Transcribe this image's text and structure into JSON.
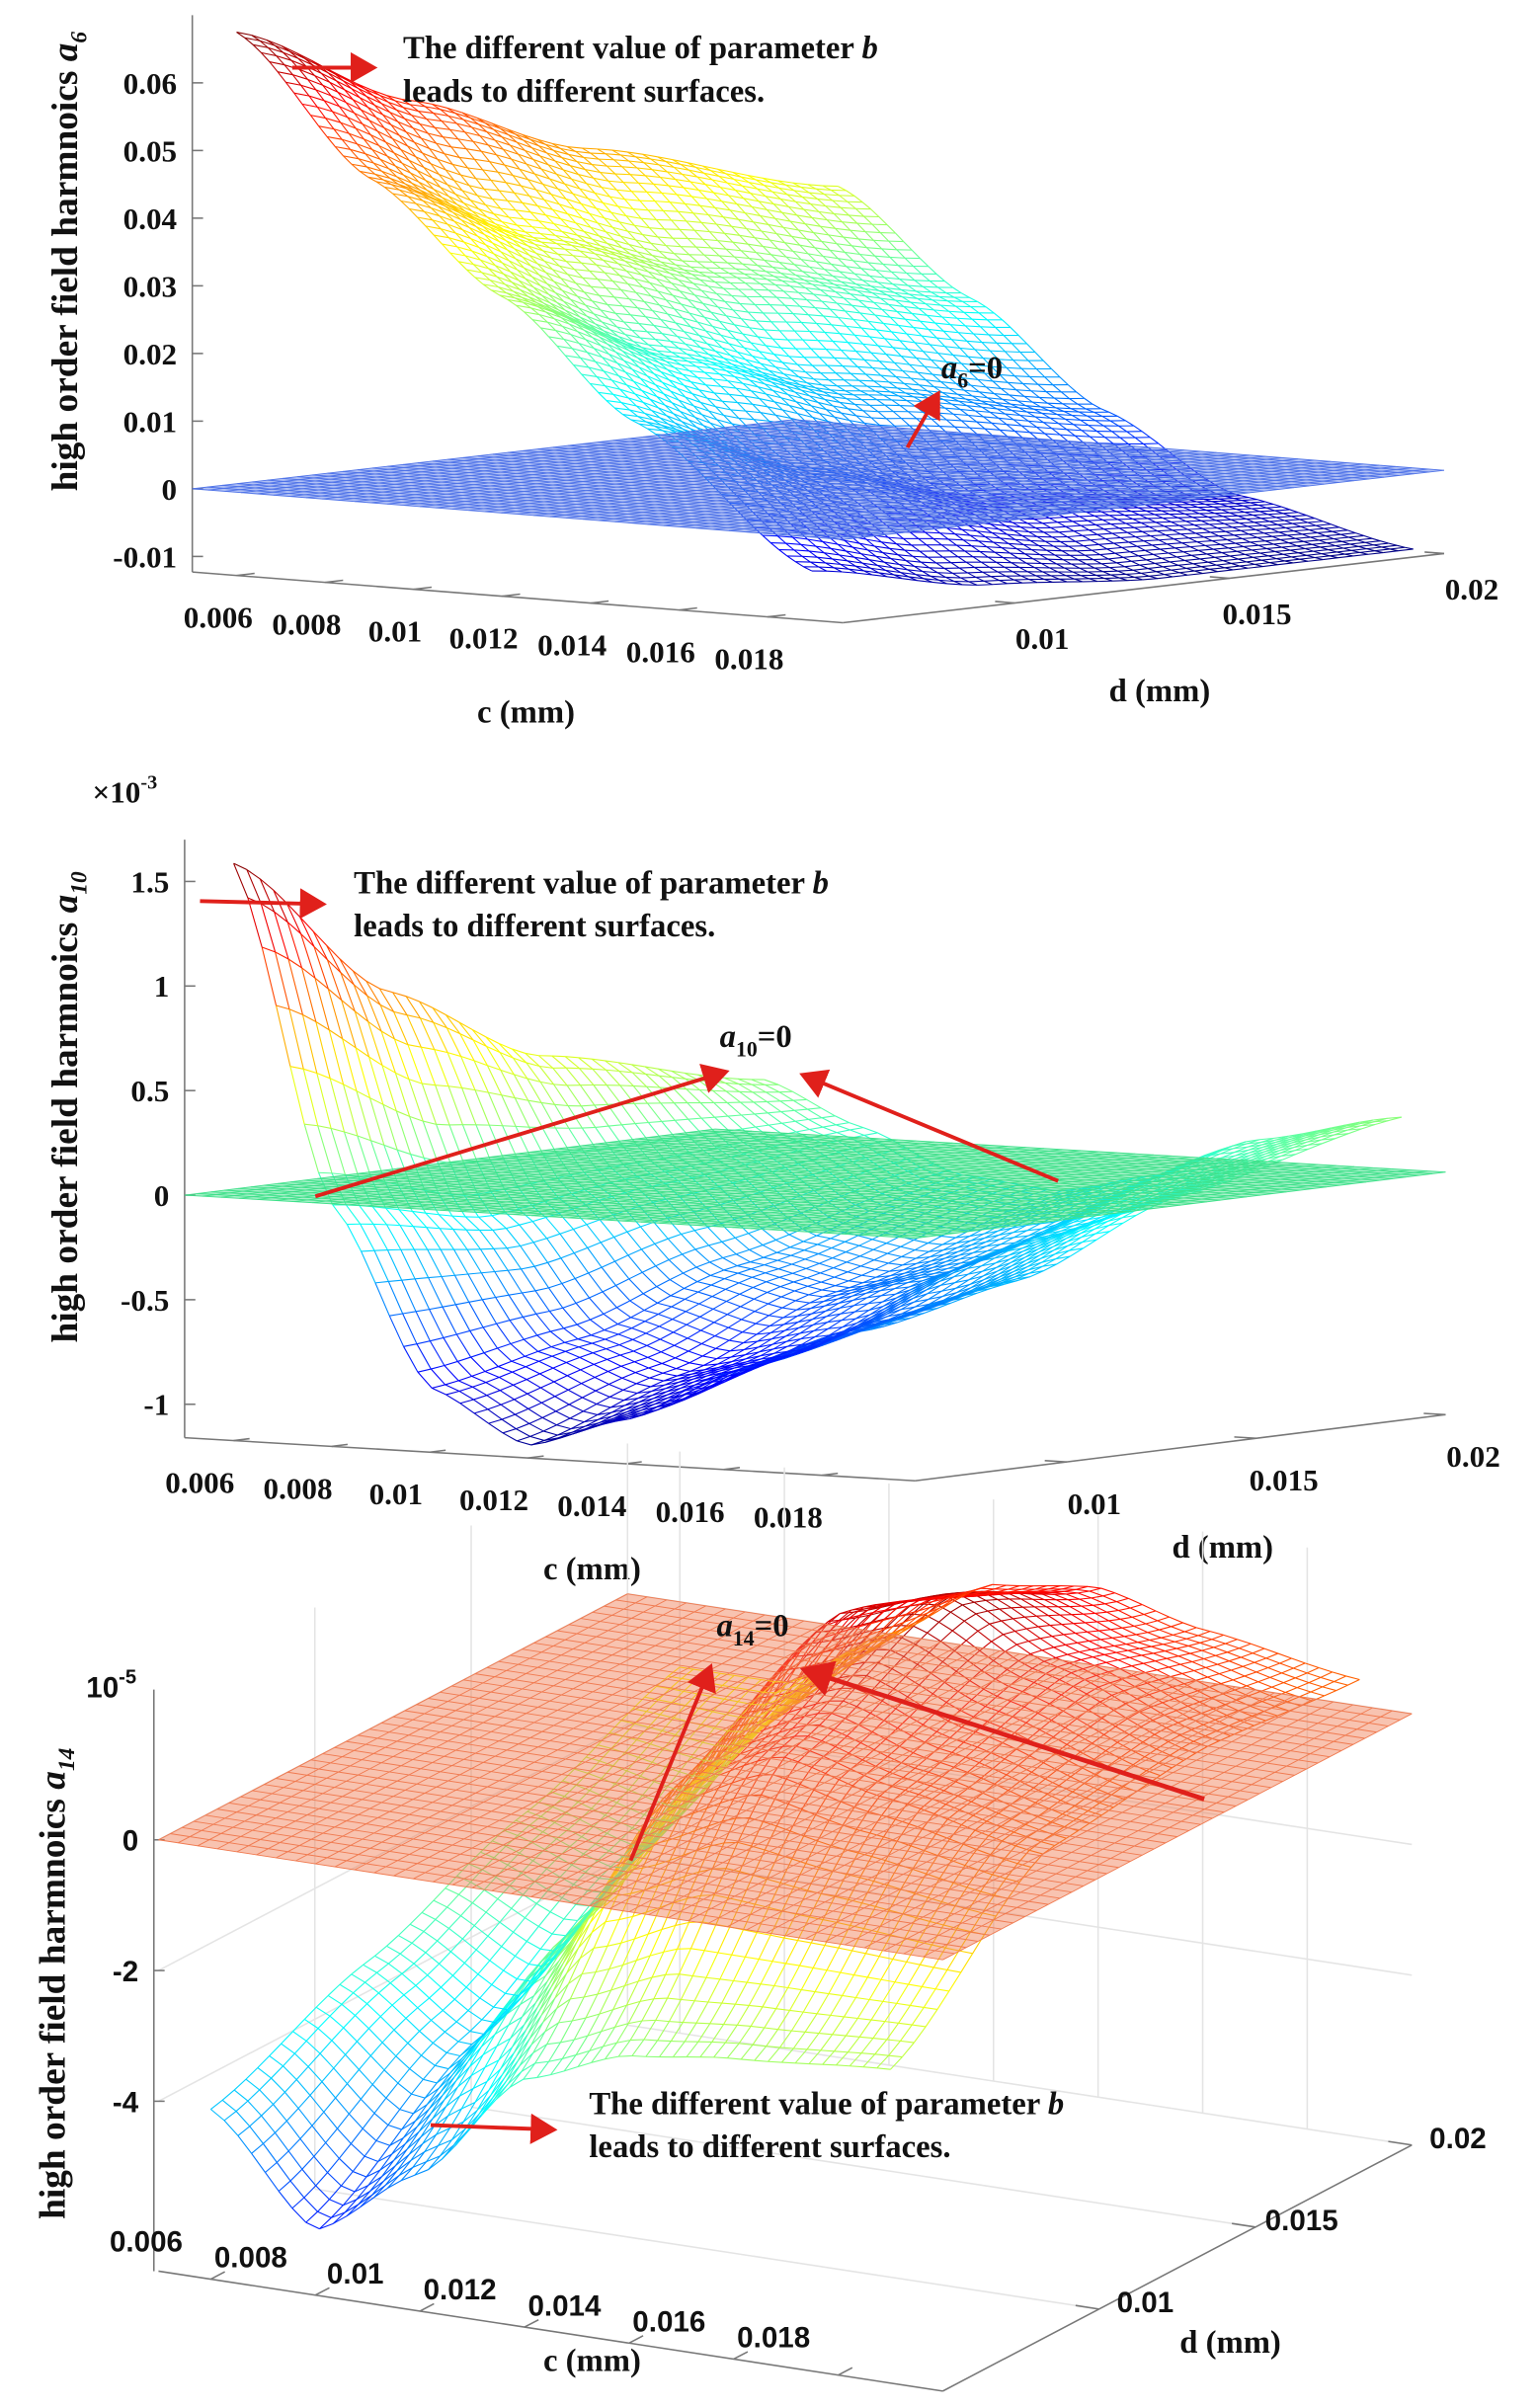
{
  "colors": {
    "arrow": "#e0201b",
    "axis": "#777777",
    "grid": "#e4e4e4"
  },
  "chart_data": [
    {
      "type": "surface",
      "zlabel": {
        "text": "high order field harmnoics ",
        "var": "a",
        "sub": "6"
      },
      "xlabel": "c (mm)",
      "ylabel": "d (mm)",
      "z_exponent": "",
      "c_range": [
        0.005,
        0.0197
      ],
      "d_range": [
        0.006,
        0.02
      ],
      "z_range": [
        -0.0123,
        0.07
      ],
      "c_ticks": [
        "0.006",
        "0.008",
        "0.01",
        "0.012",
        "0.014",
        "0.016",
        "0.018"
      ],
      "d_ticks": [
        "0.01",
        "0.015",
        "0.02"
      ],
      "z_ticks": [
        "-0.01",
        "0",
        "0.01",
        "0.02",
        "0.03",
        "0.04",
        "0.05",
        "0.06"
      ],
      "grid": false,
      "colormap": "jet",
      "color_range": [
        -0.0123,
        0.068
      ],
      "plane_color": "#4f73e8",
      "surface": {
        "c": [
          0.006,
          0.009,
          0.012,
          0.015,
          0.019
        ],
        "d": [
          0.006,
          0.01,
          0.014,
          0.02
        ],
        "z": [
          [
            0.068,
            0.048,
            0.032,
            0.015,
            -0.005
          ],
          [
            0.055,
            0.036,
            0.02,
            0.005,
            -0.01
          ],
          [
            0.045,
            0.028,
            0.012,
            -0.002,
            -0.012
          ],
          [
            0.035,
            0.02,
            0.005,
            -0.006,
            -0.012
          ]
        ]
      },
      "annotations": {
        "surfaces_line1": "The different value of parameter ",
        "surfaces_b": "b",
        "surfaces_line2": "leads to different surfaces.",
        "zero_var": "a",
        "zero_sub": "6",
        "zero_eq": "=0"
      }
    },
    {
      "type": "surface",
      "zlabel": {
        "text": "high order field harmnoics ",
        "var": "a",
        "sub": "10"
      },
      "xlabel": "c (mm)",
      "ylabel": "d (mm)",
      "z_exponent": {
        "base": "×10",
        "exp": "-3"
      },
      "c_range": [
        0.005,
        0.0199
      ],
      "d_range": [
        0.006,
        0.02
      ],
      "z_range": [
        -1.16,
        1.7
      ],
      "c_ticks": [
        "0.006",
        "0.008",
        "0.01",
        "0.012",
        "0.014",
        "0.016",
        "0.018"
      ],
      "d_ticks": [
        "0.01",
        "0.015",
        "0.02"
      ],
      "z_ticks": [
        "-1",
        "-0.5",
        "0",
        "0.5",
        "1",
        "1.5"
      ],
      "grid": false,
      "colormap": "jet",
      "color_range": [
        -1.15,
        1.6
      ],
      "plane_color": "#3fe08a",
      "surface": {
        "c": [
          0.006,
          0.008,
          0.01,
          0.012,
          0.014,
          0.016,
          0.019
        ],
        "d": [
          0.006,
          0.01,
          0.014,
          0.02
        ],
        "z": [
          [
            1.6,
            0.0,
            -0.85,
            -1.1,
            -0.95,
            -0.7,
            -0.45
          ],
          [
            0.9,
            -0.15,
            -0.7,
            -0.85,
            -0.75,
            -0.55,
            -0.3
          ],
          [
            0.5,
            -0.05,
            -0.45,
            -0.55,
            -0.45,
            -0.25,
            0.0
          ],
          [
            0.25,
            0.05,
            -0.15,
            -0.2,
            -0.1,
            0.1,
            0.25
          ]
        ]
      },
      "annotations": {
        "surfaces_line1": "The different value of parameter ",
        "surfaces_b": "b",
        "surfaces_line2": "leads to different surfaces.",
        "zero_var": "a",
        "zero_sub": "10",
        "zero_eq": "=0"
      }
    },
    {
      "type": "surface",
      "zlabel": {
        "text": "high order field harmnoics ",
        "var": "a",
        "sub": "14"
      },
      "xlabel": "c (mm)",
      "ylabel": "d (mm)",
      "z_exponent": {
        "base": "10",
        "exp": "-5"
      },
      "c_range": [
        0.005,
        0.02
      ],
      "d_range": [
        0.005,
        0.02
      ],
      "z_range": [
        -6.6,
        2.3
      ],
      "c_ticks": [
        "0.006",
        "0.008",
        "0.01",
        "0.012",
        "0.014",
        "0.016",
        "0.018"
      ],
      "d_ticks": [
        "0.01",
        "0.015",
        "0.02"
      ],
      "z_ticks": [
        "-4",
        "-2",
        "0"
      ],
      "grid": true,
      "colormap": "jet",
      "color_range": [
        -7.0,
        2.5
      ],
      "plane_color": "#f07a50",
      "surface": {
        "c": [
          0.006,
          0.008,
          0.01,
          0.012,
          0.014,
          0.016,
          0.019
        ],
        "d": [
          0.005,
          0.01,
          0.015,
          0.02
        ],
        "z": [
          [
            -4.0,
            -5.6,
            -4.5,
            -2.8,
            -2.2,
            -2.0,
            -1.8
          ],
          [
            -3.0,
            -4.0,
            -2.0,
            0.5,
            1.2,
            0.8,
            0.3
          ],
          [
            -2.0,
            -2.5,
            -0.5,
            1.8,
            2.3,
            1.5,
            0.6
          ],
          [
            -1.0,
            -1.0,
            0.0,
            1.0,
            1.2,
            0.8,
            0.4
          ]
        ]
      },
      "annotations": {
        "surfaces_line1": "The different value of parameter ",
        "surfaces_b": "b",
        "surfaces_line2": "leads to different surfaces.",
        "zero_var": "a",
        "zero_sub": "14",
        "zero_eq": "=0"
      }
    }
  ]
}
